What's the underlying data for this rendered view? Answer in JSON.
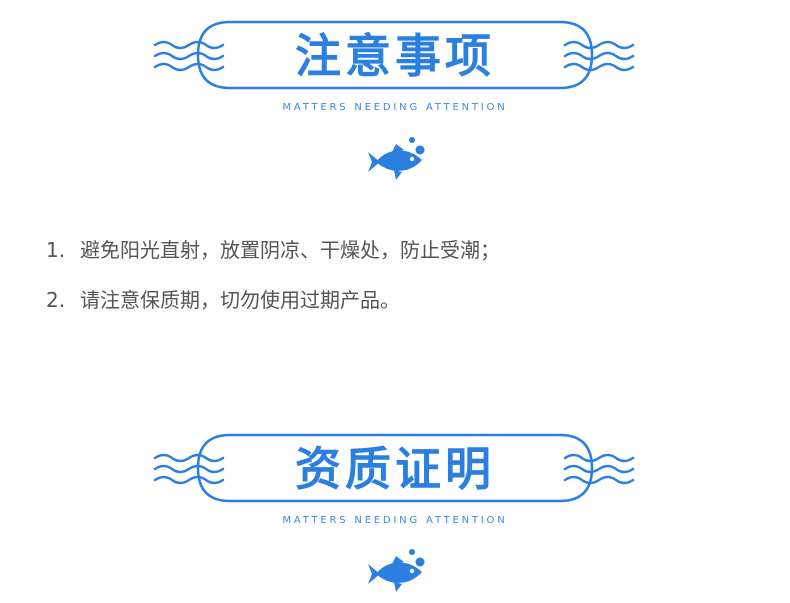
{
  "sections": [
    {
      "title": "注意事项",
      "subtitle": "MATTERS NEEDING ATTENTION",
      "items": [
        {
          "num": "1.",
          "text": "避免阳光直射，放置阴凉、干燥处，防止受潮；"
        },
        {
          "num": "2.",
          "text": "请注意保质期，切勿使用过期产品。"
        }
      ]
    },
    {
      "title": "资质证明",
      "subtitle": "MATTERS NEEDING ATTENTION"
    }
  ],
  "icons": {
    "waves": "waves-icon",
    "fish": "fish-icon"
  },
  "colors": {
    "accent": "#2a7fe0",
    "text": "#555555"
  }
}
